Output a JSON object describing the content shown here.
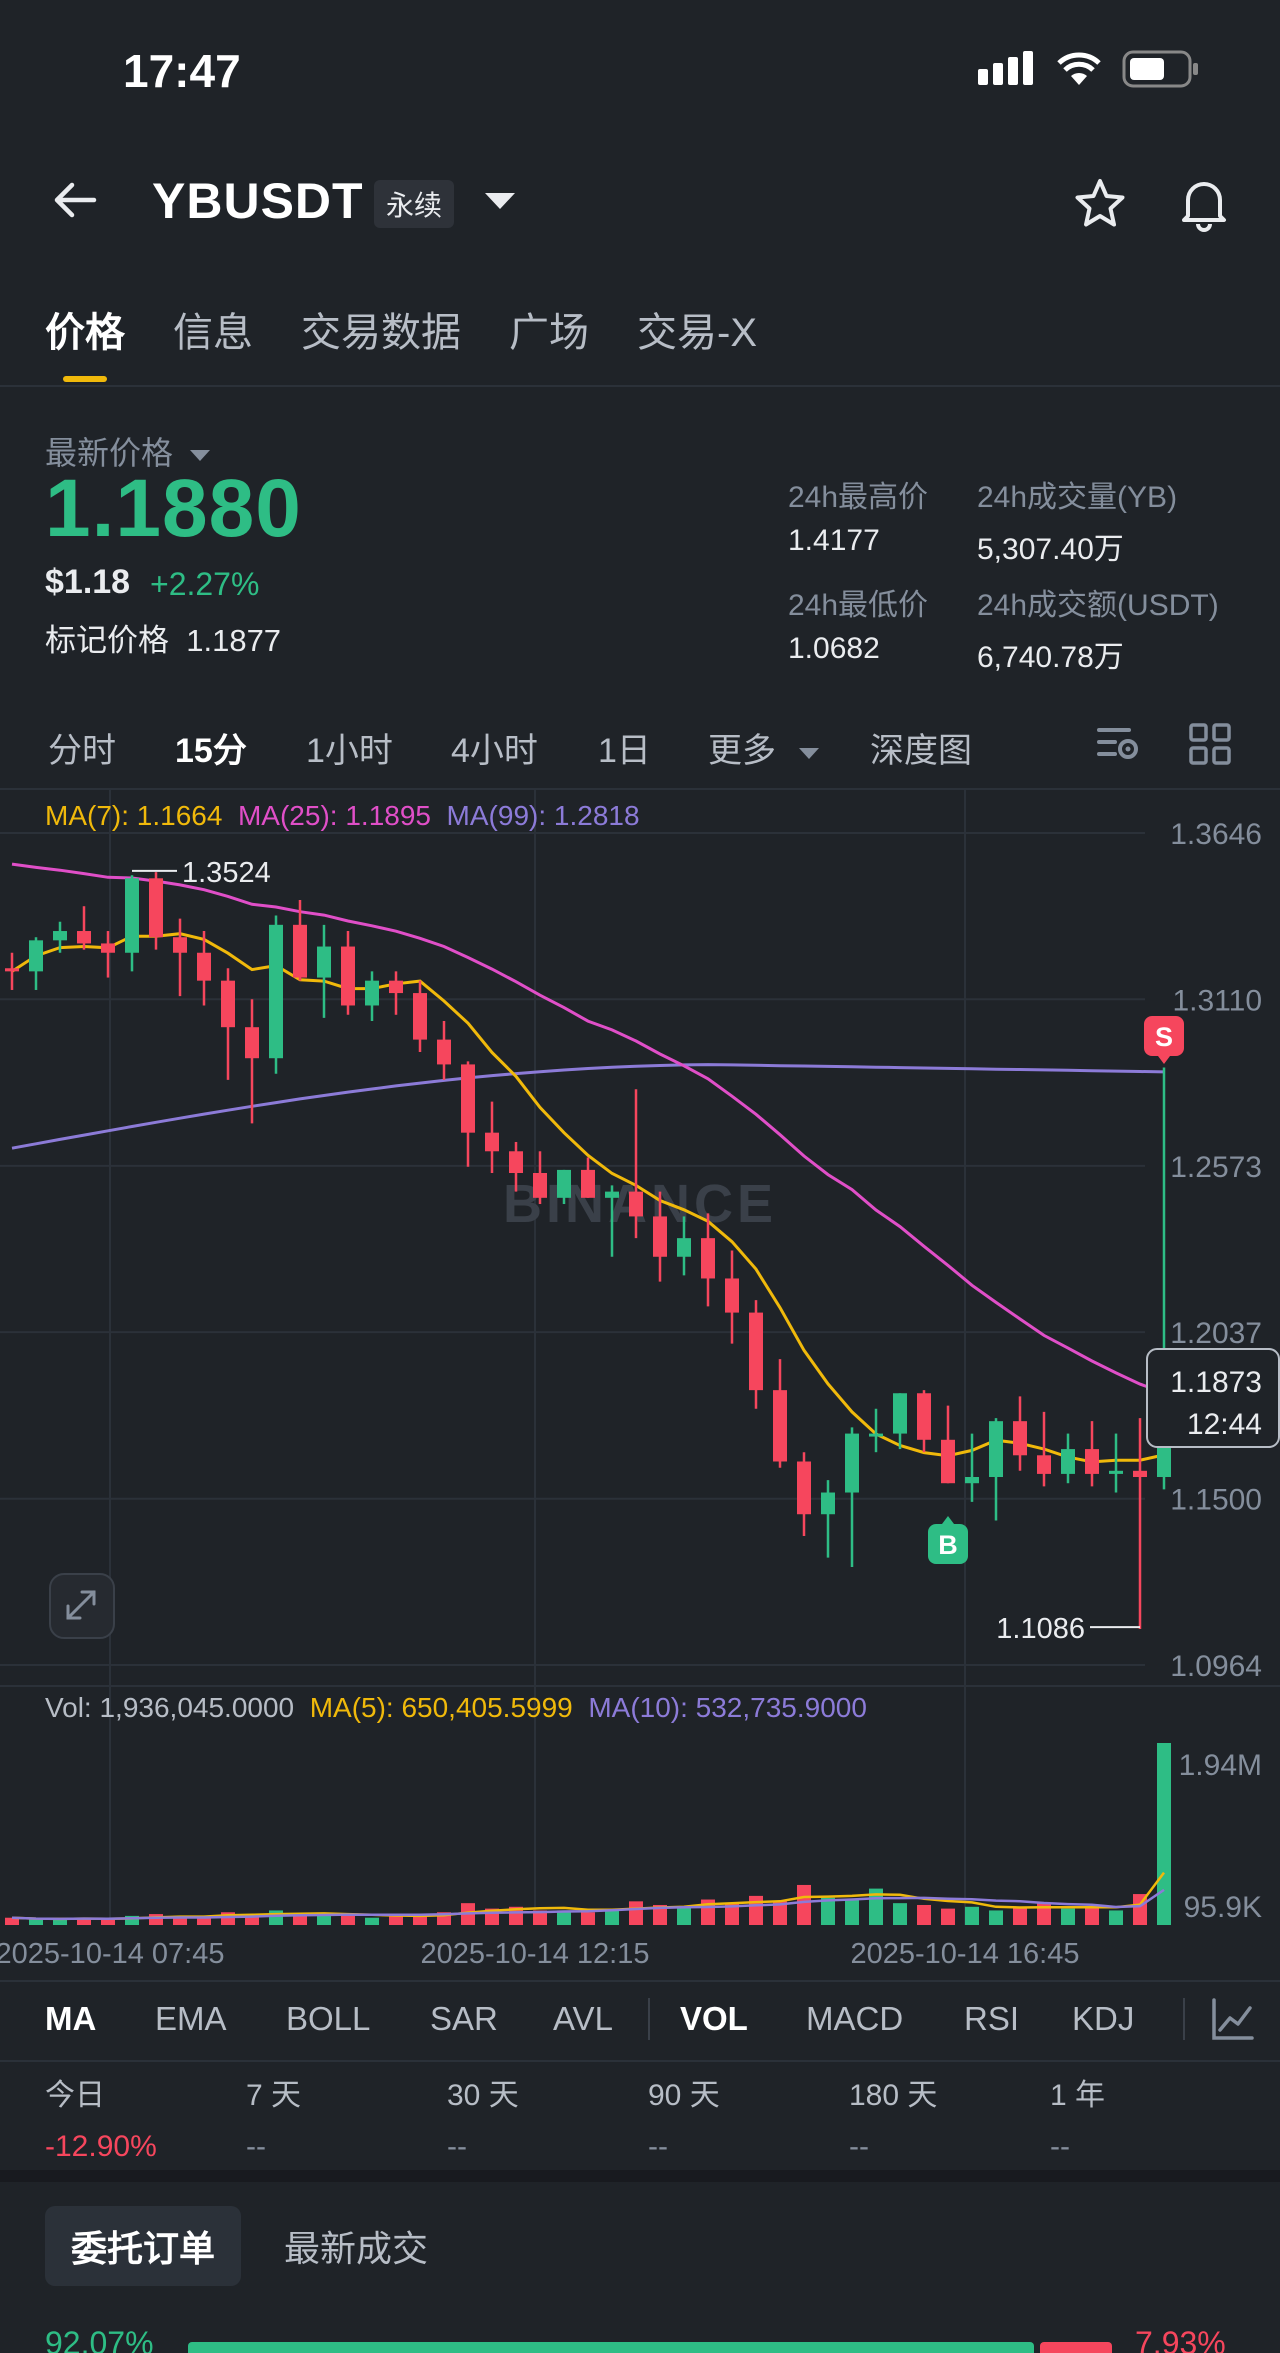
{
  "status": {
    "time": "17:47"
  },
  "header": {
    "symbol": "YBUSDT",
    "badge": "永续"
  },
  "tabs": [
    "价格",
    "信息",
    "交易数据",
    "广场",
    "交易-X"
  ],
  "price": {
    "label": "最新价格",
    "last": "1.1880",
    "usd": "$1.18",
    "change": "+2.27%",
    "mark_label": "标记价格",
    "mark_value": "1.1877"
  },
  "stats": {
    "high_label": "24h最高价",
    "high": "1.4177",
    "vol_label": "24h成交量(YB)",
    "vol": "5,307.40万",
    "low_label": "24h最低价",
    "low": "1.0682",
    "turnover_label": "24h成交额(USDT)",
    "turnover": "6,740.78万"
  },
  "timeframes": {
    "items": [
      "分时",
      "15分",
      "1小时",
      "4小时",
      "1日",
      "更多",
      "深度图"
    ],
    "active": "15分"
  },
  "ma_legend": {
    "ma7": "MA(7): 1.1664",
    "ma25": "MA(25): 1.1895",
    "ma99": "MA(99): 1.2818"
  },
  "chart_data": {
    "type": "candlestick",
    "watermark": "BINANCE",
    "price_axis": [
      "1.3646",
      "1.3110",
      "1.2573",
      "1.2037",
      "1.1500",
      "1.0964"
    ],
    "current_price": "1.1873",
    "countdown": "12:44",
    "high_marker": "1.3524",
    "low_marker": "1.1086",
    "sell_marker": "S",
    "buy_marker": "B",
    "time_axis": [
      "2025-10-14 07:45",
      "2025-10-14 12:15",
      "2025-10-14 16:45"
    ],
    "colors": {
      "up": "#2ebd85",
      "down": "#f6465d",
      "ma7": "#f0b90b",
      "ma25": "#e04fc8",
      "ma99": "#8c7bd8"
    },
    "candles": [
      [
        1.321,
        1.326,
        1.314,
        1.32
      ],
      [
        1.32,
        1.331,
        1.314,
        1.33
      ],
      [
        1.33,
        1.336,
        1.326,
        1.333
      ],
      [
        1.333,
        1.341,
        1.327,
        1.329
      ],
      [
        1.329,
        1.333,
        1.318,
        1.326
      ],
      [
        1.326,
        1.351,
        1.32,
        1.35
      ],
      [
        1.35,
        1.352,
        1.327,
        1.331
      ],
      [
        1.331,
        1.337,
        1.312,
        1.326
      ],
      [
        1.326,
        1.333,
        1.309,
        1.317
      ],
      [
        1.317,
        1.321,
        1.285,
        1.302
      ],
      [
        1.302,
        1.311,
        1.271,
        1.292
      ],
      [
        1.292,
        1.338,
        1.287,
        1.335
      ],
      [
        1.335,
        1.343,
        1.317,
        1.318
      ],
      [
        1.318,
        1.335,
        1.305,
        1.328
      ],
      [
        1.328,
        1.333,
        1.306,
        1.309
      ],
      [
        1.309,
        1.32,
        1.304,
        1.317
      ],
      [
        1.317,
        1.32,
        1.306,
        1.313
      ],
      [
        1.313,
        1.317,
        1.294,
        1.298
      ],
      [
        1.298,
        1.304,
        1.285,
        1.29
      ],
      [
        1.29,
        1.291,
        1.257,
        1.268
      ],
      [
        1.268,
        1.278,
        1.255,
        1.262
      ],
      [
        1.262,
        1.265,
        1.249,
        1.255
      ],
      [
        1.255,
        1.262,
        1.245,
        1.247
      ],
      [
        1.247,
        1.256,
        1.245,
        1.256
      ],
      [
        1.256,
        1.26,
        1.247,
        1.247
      ],
      [
        1.247,
        1.251,
        1.228,
        1.249
      ],
      [
        1.249,
        1.282,
        1.234,
        1.241
      ],
      [
        1.241,
        1.249,
        1.22,
        1.228
      ],
      [
        1.228,
        1.241,
        1.222,
        1.234
      ],
      [
        1.234,
        1.242,
        1.212,
        1.221
      ],
      [
        1.221,
        1.23,
        1.2,
        1.21
      ],
      [
        1.21,
        1.214,
        1.179,
        1.185
      ],
      [
        1.185,
        1.195,
        1.16,
        1.162
      ],
      [
        1.162,
        1.165,
        1.138,
        1.145
      ],
      [
        1.145,
        1.156,
        1.131,
        1.152
      ],
      [
        1.152,
        1.173,
        1.128,
        1.171
      ],
      [
        1.171,
        1.179,
        1.165,
        1.171
      ],
      [
        1.171,
        1.184,
        1.166,
        1.184
      ],
      [
        1.184,
        1.185,
        1.165,
        1.169
      ],
      [
        1.169,
        1.18,
        1.155,
        1.155
      ],
      [
        1.155,
        1.171,
        1.149,
        1.157
      ],
      [
        1.157,
        1.176,
        1.143,
        1.175
      ],
      [
        1.175,
        1.183,
        1.159,
        1.164
      ],
      [
        1.164,
        1.178,
        1.154,
        1.158
      ],
      [
        1.158,
        1.171,
        1.155,
        1.166
      ],
      [
        1.166,
        1.175,
        1.154,
        1.158
      ],
      [
        1.158,
        1.171,
        1.152,
        1.159
      ],
      [
        1.159,
        1.176,
        1.108,
        1.157
      ],
      [
        1.157,
        1.289,
        1.153,
        1.187
      ]
    ],
    "volume": {
      "label": "Vol: 1,936,045.0000",
      "ma5": "MA(5): 650,405.5999",
      "ma10": "MA(10): 532,735.9000",
      "axis": [
        "1.94M",
        "95.9K"
      ]
    }
  },
  "indicators": {
    "items": [
      "MA",
      "EMA",
      "BOLL",
      "SAR",
      "AVL",
      "VOL",
      "MACD",
      "RSI",
      "KDJ"
    ],
    "active": [
      "MA",
      "VOL"
    ]
  },
  "performance": [
    {
      "label": "今日",
      "value": "-12.90%"
    },
    {
      "label": "7 天",
      "value": "--"
    },
    {
      "label": "30 天",
      "value": "--"
    },
    {
      "label": "90 天",
      "value": "--"
    },
    {
      "label": "180 天",
      "value": "--"
    },
    {
      "label": "1 年",
      "value": "--"
    }
  ],
  "order_tabs": {
    "orders": "委托订单",
    "trades": "最新成交"
  },
  "order_ratio": {
    "buy": "92.07%",
    "sell": "7.93%"
  }
}
